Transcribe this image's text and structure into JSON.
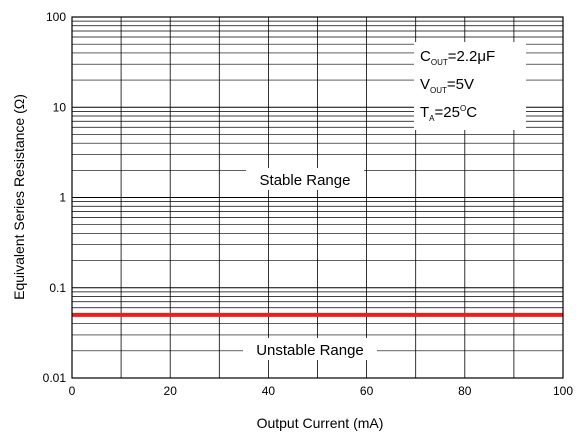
{
  "chart_data": {
    "type": "line",
    "title": "",
    "xlabel": "Output Current (mA)",
    "ylabel": "Equivalent Series Resistance (Ω)",
    "xlim": [
      0,
      100
    ],
    "ylim": [
      0.01,
      100
    ],
    "yscale": "log",
    "grid": true,
    "x_ticks": [
      "0",
      "20",
      "40",
      "60",
      "80",
      "100"
    ],
    "y_ticks": [
      "0.01",
      "0.1",
      "1",
      "10",
      "100"
    ],
    "series": [
      {
        "x": [
          0,
          100
        ],
        "values": [
          0.05,
          0.05
        ],
        "color": "#ee1c1c"
      }
    ],
    "regions": {
      "stable": "Stable Range",
      "unstable": "Unstable Range"
    },
    "conditions": [
      {
        "base": "C",
        "sub": "OUT",
        "rest": "=2.2μF",
        "sup": ""
      },
      {
        "base": "V",
        "sub": "OUT",
        "rest": "=5V",
        "sup": ""
      },
      {
        "base": "T",
        "sub": "A",
        "rest": "=25",
        "sup": "O",
        "tail": "C"
      }
    ]
  }
}
